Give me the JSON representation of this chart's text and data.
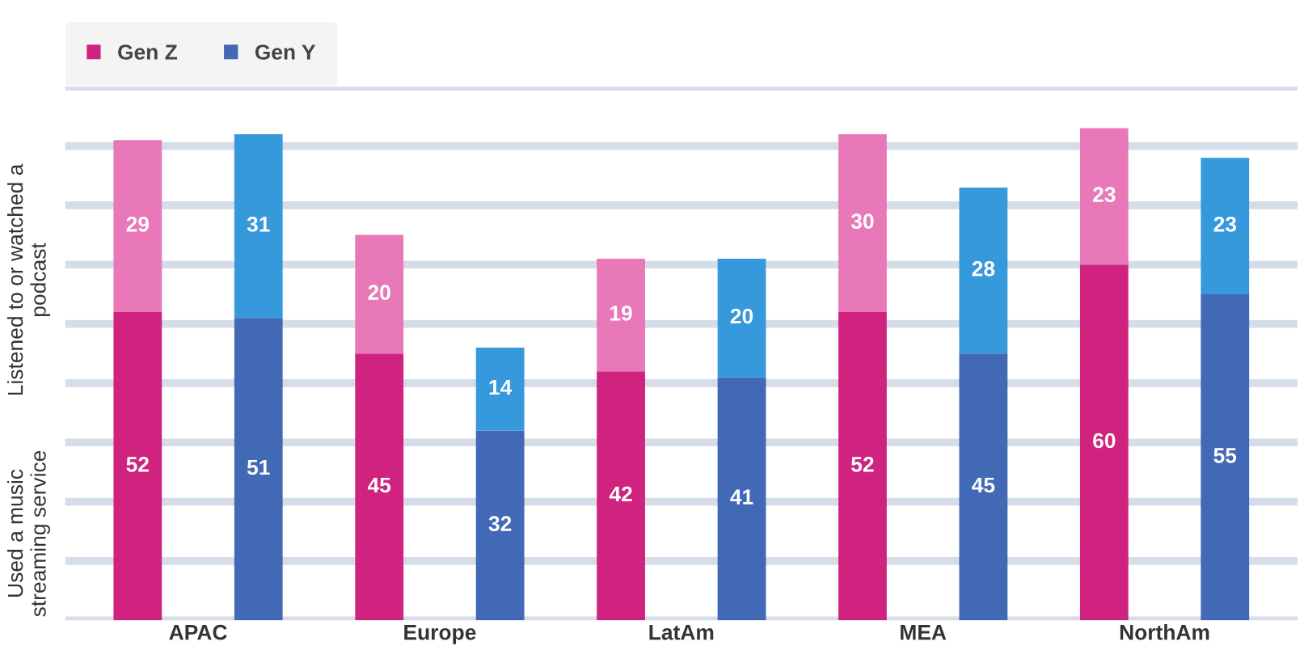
{
  "chart_data": [
    {
      "type": "bar",
      "stacked": true,
      "data_labels": true,
      "legend": "top left",
      "grid": "y",
      "categories": [
        "APAC",
        "Europe",
        "LatAm",
        "MEA",
        "NorthAm"
      ],
      "series": [
        {
          "name": "Gen Z",
          "color": "#d0237f",
          "values": [
            52,
            45,
            42,
            52,
            60
          ]
        },
        {
          "color": "#e878b8",
          "values": [
            29,
            20,
            19,
            30,
            23
          ]
        }
      ],
      "ylim": [
        0,
        90
      ],
      "yticks": [
        {
          "value": 0,
          "label": null
        },
        {
          "value": 10,
          "label": null
        },
        {
          "value": 20,
          "label": null
        },
        {
          "value": 30,
          "label": null
        },
        {
          "value": 40,
          "label": null
        },
        {
          "value": 50,
          "label": null
        },
        {
          "value": 60,
          "label": null
        },
        {
          "value": 70,
          "label": null
        },
        {
          "value": 80,
          "label": null
        },
        {
          "value": 90,
          "label": null
        }
      ],
      "annotations": [
        "Listened to or watched a podcast",
        "Used a music streaming service"
      ]
    },
    {
      "type": "bar",
      "stacked": true,
      "data_labels": true,
      "legend": "top left",
      "categories": [
        null,
        null,
        null,
        null,
        null
      ],
      "series": [
        {
          "name": "Gen Y",
          "color": "#4169b5",
          "values": [
            51,
            32,
            41,
            45,
            55
          ]
        },
        {
          "color": "#3599db",
          "values": [
            31,
            14,
            20,
            28,
            23
          ]
        }
      ],
      "ylim": [
        0,
        90
      ],
      "yticks": [
        {
          "value": 0,
          "label": null
        },
        {
          "value": 10,
          "label": null
        },
        {
          "value": 20,
          "label": null
        },
        {
          "value": 30,
          "label": null
        },
        {
          "value": 40,
          "label": null
        },
        {
          "value": 50,
          "label": null
        },
        {
          "value": 60,
          "label": null
        },
        {
          "value": 70,
          "label": null
        },
        {
          "value": 80,
          "label": null
        },
        {
          "value": 90,
          "label": null
        }
      ]
    }
  ]
}
